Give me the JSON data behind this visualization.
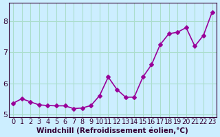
{
  "x": [
    0,
    1,
    2,
    3,
    4,
    5,
    6,
    7,
    8,
    9,
    10,
    11,
    12,
    13,
    14,
    15,
    16,
    17,
    18,
    19,
    20,
    21,
    22,
    23
  ],
  "y": [
    5.35,
    5.5,
    5.4,
    5.3,
    5.28,
    5.27,
    5.27,
    5.18,
    5.2,
    5.28,
    5.6,
    6.2,
    5.8,
    5.55,
    5.55,
    6.2,
    6.6,
    7.25,
    7.6,
    7.65,
    7.8,
    7.2,
    7.55,
    8.3
  ],
  "line_color": "#990099",
  "marker": "D",
  "marker_size": 3,
  "bg_color": "#cceeff",
  "grid_color": "#aaddcc",
  "xlabel": "Windchill (Refroidissement éolien,°C)",
  "xlabel_fontsize": 7.5,
  "ylabel_ticks": [
    5,
    6,
    7,
    8
  ],
  "xtick_labels": [
    "0",
    "1",
    "2",
    "3",
    "4",
    "5",
    "6",
    "7",
    "8",
    "9",
    "10",
    "11",
    "12",
    "13",
    "14",
    "15",
    "16",
    "17",
    "18",
    "19",
    "20",
    "21",
    "22",
    "23"
  ],
  "xlim": [
    -0.5,
    23.5
  ],
  "ylim": [
    4.9,
    8.6
  ],
  "tick_fontsize": 7,
  "line_width": 1.2
}
